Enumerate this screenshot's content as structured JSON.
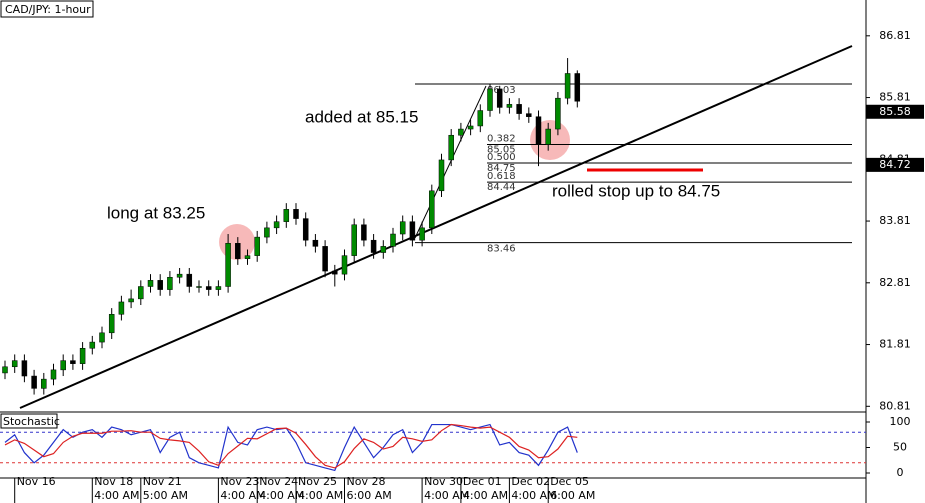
{
  "chart_data": {
    "type": "candlestick",
    "title": "CAD/JPY: 1-hour",
    "indicator_title": "Stochastic",
    "categories": [
      null,
      "Nov 16",
      null,
      null,
      null,
      null,
      null,
      null,
      null,
      "Nov 18",
      null,
      null,
      null,
      null,
      "Nov 21",
      null,
      null,
      null,
      null,
      null,
      null,
      null,
      "Nov 23",
      null,
      null,
      null,
      "Nov 24",
      null,
      null,
      null,
      "Nov 25",
      null,
      null,
      null,
      null,
      "Nov 28",
      null,
      null,
      null,
      null,
      null,
      null,
      null,
      "Nov 30",
      null,
      null,
      null,
      "Dec 01",
      null,
      null,
      null,
      null,
      "Dec 02",
      null,
      null,
      null,
      "Dec 05",
      null,
      null,
      null
    ],
    "time_labels": [
      null,
      null,
      null,
      null,
      null,
      null,
      null,
      null,
      null,
      "4:00 AM",
      null,
      null,
      null,
      null,
      "5:00 AM",
      null,
      null,
      null,
      null,
      null,
      null,
      null,
      "4:00 AM",
      null,
      null,
      null,
      "4:00 AM",
      null,
      null,
      null,
      "4:00 AM",
      null,
      null,
      null,
      null,
      "6:00 AM",
      null,
      null,
      null,
      null,
      null,
      null,
      null,
      "4:00 AM",
      null,
      null,
      null,
      "4:00 AM",
      null,
      null,
      null,
      null,
      "4:00 AM",
      null,
      null,
      null,
      "6:00 AM",
      null,
      null,
      null
    ],
    "open": [
      81.35,
      81.45,
      81.55,
      81.3,
      81.1,
      81.25,
      81.4,
      81.55,
      81.5,
      81.75,
      81.85,
      82.0,
      82.3,
      82.5,
      82.55,
      82.75,
      82.85,
      82.7,
      82.9,
      82.95,
      82.75,
      82.75,
      82.7,
      82.75,
      83.45,
      83.2,
      83.25,
      83.55,
      83.7,
      83.8,
      84.0,
      83.85,
      83.5,
      83.4,
      83.0,
      82.95,
      83.25,
      83.75,
      83.5,
      83.3,
      83.4,
      83.6,
      83.8,
      83.5,
      83.7,
      84.3,
      84.8,
      85.2,
      85.3,
      85.35,
      85.6,
      85.95,
      85.65,
      85.7,
      85.55,
      85.5,
      85.05,
      85.3,
      85.8,
      86.2
    ],
    "high": [
      81.55,
      81.65,
      81.65,
      81.4,
      81.35,
      81.5,
      81.65,
      81.65,
      81.85,
      81.95,
      82.1,
      82.4,
      82.6,
      82.7,
      82.85,
      82.95,
      82.95,
      83.0,
      83.05,
      83.05,
      82.85,
      82.85,
      82.85,
      83.6,
      83.55,
      83.35,
      83.65,
      83.8,
      83.9,
      84.1,
      84.1,
      83.95,
      83.6,
      83.5,
      83.1,
      83.35,
      83.85,
      83.85,
      83.6,
      83.5,
      83.7,
      83.9,
      83.9,
      83.8,
      84.4,
      84.9,
      85.3,
      85.4,
      85.45,
      85.7,
      86.03,
      86.0,
      85.8,
      85.8,
      85.65,
      85.6,
      85.4,
      85.9,
      86.45,
      86.25
    ],
    "low": [
      81.25,
      81.35,
      81.2,
      81.0,
      81.0,
      81.15,
      81.3,
      81.4,
      81.4,
      81.65,
      81.75,
      81.9,
      82.2,
      82.4,
      82.45,
      82.65,
      82.6,
      82.6,
      82.8,
      82.65,
      82.65,
      82.6,
      82.6,
      82.65,
      83.1,
      83.1,
      83.15,
      83.45,
      83.6,
      83.7,
      83.75,
      83.4,
      83.3,
      82.9,
      82.75,
      82.85,
      83.15,
      83.4,
      83.2,
      83.2,
      83.3,
      83.5,
      83.4,
      83.4,
      83.6,
      84.2,
      84.7,
      85.1,
      85.2,
      85.25,
      85.5,
      85.55,
      85.55,
      85.45,
      85.4,
      84.7,
      84.95,
      85.2,
      85.7,
      85.65
    ],
    "close": [
      81.45,
      81.55,
      81.3,
      81.1,
      81.25,
      81.4,
      81.55,
      81.5,
      81.75,
      81.85,
      82.0,
      82.3,
      82.5,
      82.55,
      82.75,
      82.85,
      82.7,
      82.9,
      82.95,
      82.75,
      82.75,
      82.7,
      82.75,
      83.45,
      83.2,
      83.25,
      83.55,
      83.7,
      83.8,
      84.0,
      83.85,
      83.5,
      83.4,
      83.0,
      82.95,
      83.25,
      83.75,
      83.5,
      83.3,
      83.4,
      83.6,
      83.8,
      83.5,
      83.7,
      84.3,
      84.8,
      85.2,
      85.3,
      85.35,
      85.6,
      85.95,
      85.65,
      85.7,
      85.55,
      85.5,
      85.05,
      85.3,
      85.8,
      86.2,
      85.75
    ],
    "up_color": "#008a00",
    "down_color": "#000000",
    "ylim": [
      80.75,
      87.39
    ],
    "yticks": [
      86.81,
      85.81,
      84.81,
      83.81,
      82.81,
      81.81,
      80.81
    ],
    "price_tags": [
      85.58,
      84.72
    ],
    "fib_levels": [
      86.03,
      85.05,
      84.75,
      84.44,
      83.46
    ],
    "fib_ratios": [
      null,
      "0.382",
      "0.500",
      "0.618",
      null
    ],
    "annotations": [
      "added at 85.15",
      "long at 83.25",
      "rolled stop up to 84.75"
    ],
    "stochastic": {
      "ylim": [
        0,
        100
      ],
      "yticks": [
        100,
        50,
        0
      ],
      "levels": [
        80,
        20
      ],
      "series": [
        {
          "color": "#2233cc",
          "values": [
            60,
            75,
            40,
            20,
            35,
            60,
            85,
            70,
            80,
            85,
            70,
            90,
            85,
            75,
            80,
            85,
            40,
            70,
            80,
            30,
            20,
            15,
            10,
            90,
            60,
            55,
            85,
            90,
            85,
            88,
            60,
            20,
            15,
            10,
            5,
            50,
            90,
            60,
            30,
            50,
            75,
            85,
            40,
            60,
            95,
            95,
            95,
            90,
            85,
            90,
            95,
            55,
            60,
            40,
            35,
            15,
            45,
            80,
            90,
            40
          ]
        },
        {
          "color": "#dd2222",
          "values": [
            55,
            65,
            58,
            45,
            32,
            38,
            60,
            72,
            78,
            78,
            78,
            82,
            82,
            83,
            80,
            80,
            68,
            65,
            63,
            60,
            43,
            22,
            15,
            38,
            53,
            68,
            67,
            77,
            87,
            88,
            78,
            56,
            32,
            15,
            10,
            22,
            48,
            67,
            60,
            47,
            52,
            70,
            67,
            62,
            65,
            83,
            95,
            93,
            90,
            88,
            90,
            80,
            70,
            52,
            45,
            30,
            32,
            47,
            72,
            70
          ]
        }
      ]
    }
  }
}
